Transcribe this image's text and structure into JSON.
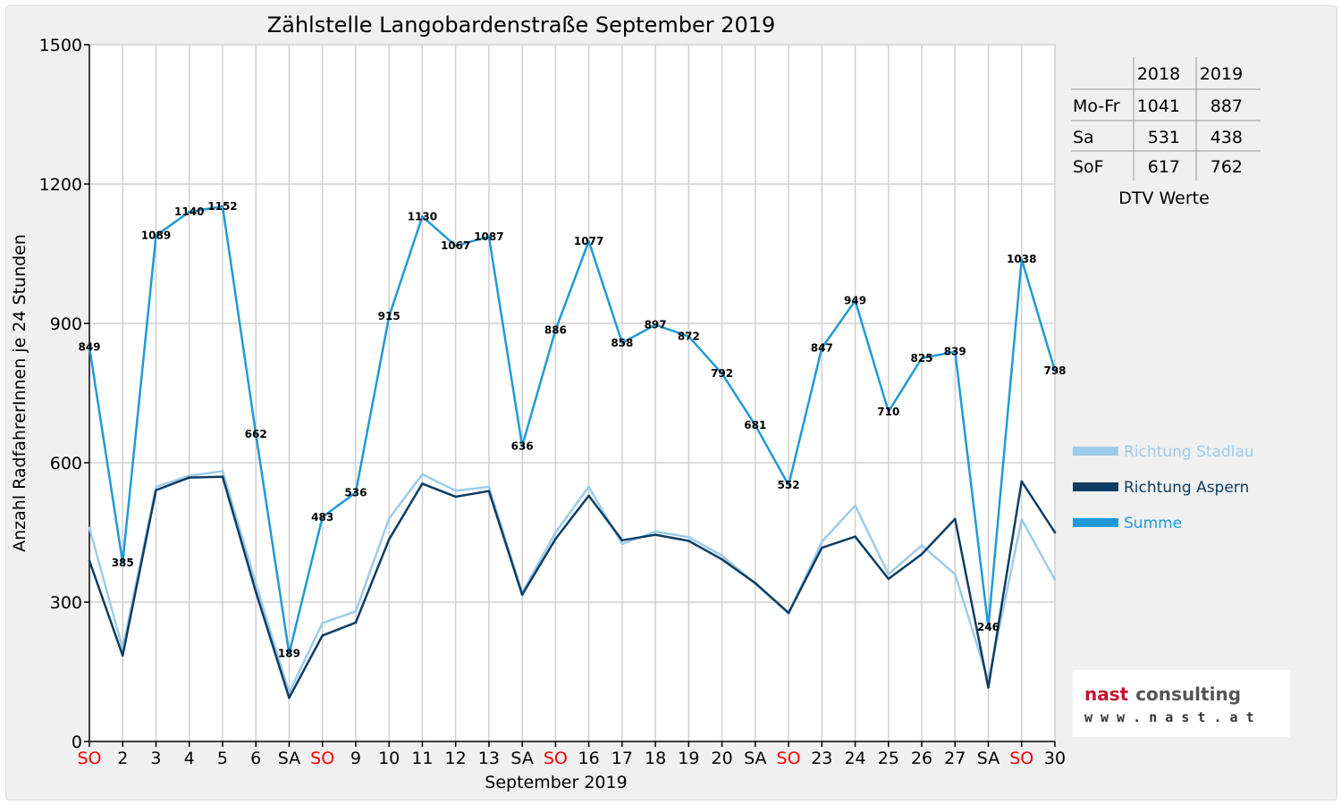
{
  "chart_data": {
    "type": "line",
    "title": "Zählstelle Langobardenstraße September 2019",
    "xlabel": "September 2019",
    "ylabel": "Anzahl RadfahrerInnen je 24 Stunden",
    "ylim": [
      0,
      1500
    ],
    "yticks": [
      "0",
      "300",
      "600",
      "900",
      "1200",
      "1500"
    ],
    "grid": true,
    "legend_position": "right",
    "categories": [
      "SO",
      "2",
      "3",
      "4",
      "5",
      "6",
      "SA",
      "SO",
      "9",
      "10",
      "11",
      "12",
      "13",
      "SA",
      "SO",
      "16",
      "17",
      "18",
      "19",
      "20",
      "SA",
      "SO",
      "23",
      "24",
      "25",
      "26",
      "27",
      "SA",
      "SO",
      "30"
    ],
    "highlight_categories": [
      "SO"
    ],
    "highlight_color": "#ff0000",
    "series": [
      {
        "name": "Richtung Stadlau",
        "color": "#9dcbea",
        "values": [
          460,
          200,
          548,
          572,
          582,
          340,
          105,
          255,
          280,
          480,
          575,
          540,
          548,
          320,
          450,
          548,
          425,
          452,
          440,
          400,
          340,
          275,
          430,
          508,
          360,
          422,
          360,
          130,
          478,
          348
        ]
      },
      {
        "name": "Richtung Aspern",
        "color": "#0d3d63",
        "values": [
          389,
          185,
          541,
          568,
          570,
          322,
          94,
          228,
          256,
          435,
          555,
          527,
          539,
          316,
          436,
          529,
          433,
          445,
          432,
          392,
          341,
          277,
          417,
          441,
          350,
          403,
          479,
          116,
          560,
          450
        ]
      },
      {
        "name": "Summe",
        "color": "#1f9ad6",
        "values": [
          849,
          385,
          1089,
          1140,
          1152,
          662,
          189,
          483,
          536,
          915,
          1130,
          1067,
          1087,
          636,
          886,
          1077,
          858,
          897,
          872,
          792,
          681,
          552,
          847,
          949,
          710,
          825,
          839,
          246,
          1038,
          798
        ]
      }
    ]
  },
  "dtv_table": {
    "caption": "DTV Werte",
    "columns": [
      "",
      "2018",
      "2019"
    ],
    "rows": [
      [
        "Mo-Fr",
        "1041",
        "887"
      ],
      [
        "Sa",
        "531",
        "438"
      ],
      [
        "SoF",
        "617",
        "762"
      ]
    ]
  },
  "logo": {
    "word1": "nast",
    "word2": "consulting",
    "url": "w w w . n a s t . a t",
    "color1": "#c8102e",
    "color2": "#555555"
  }
}
